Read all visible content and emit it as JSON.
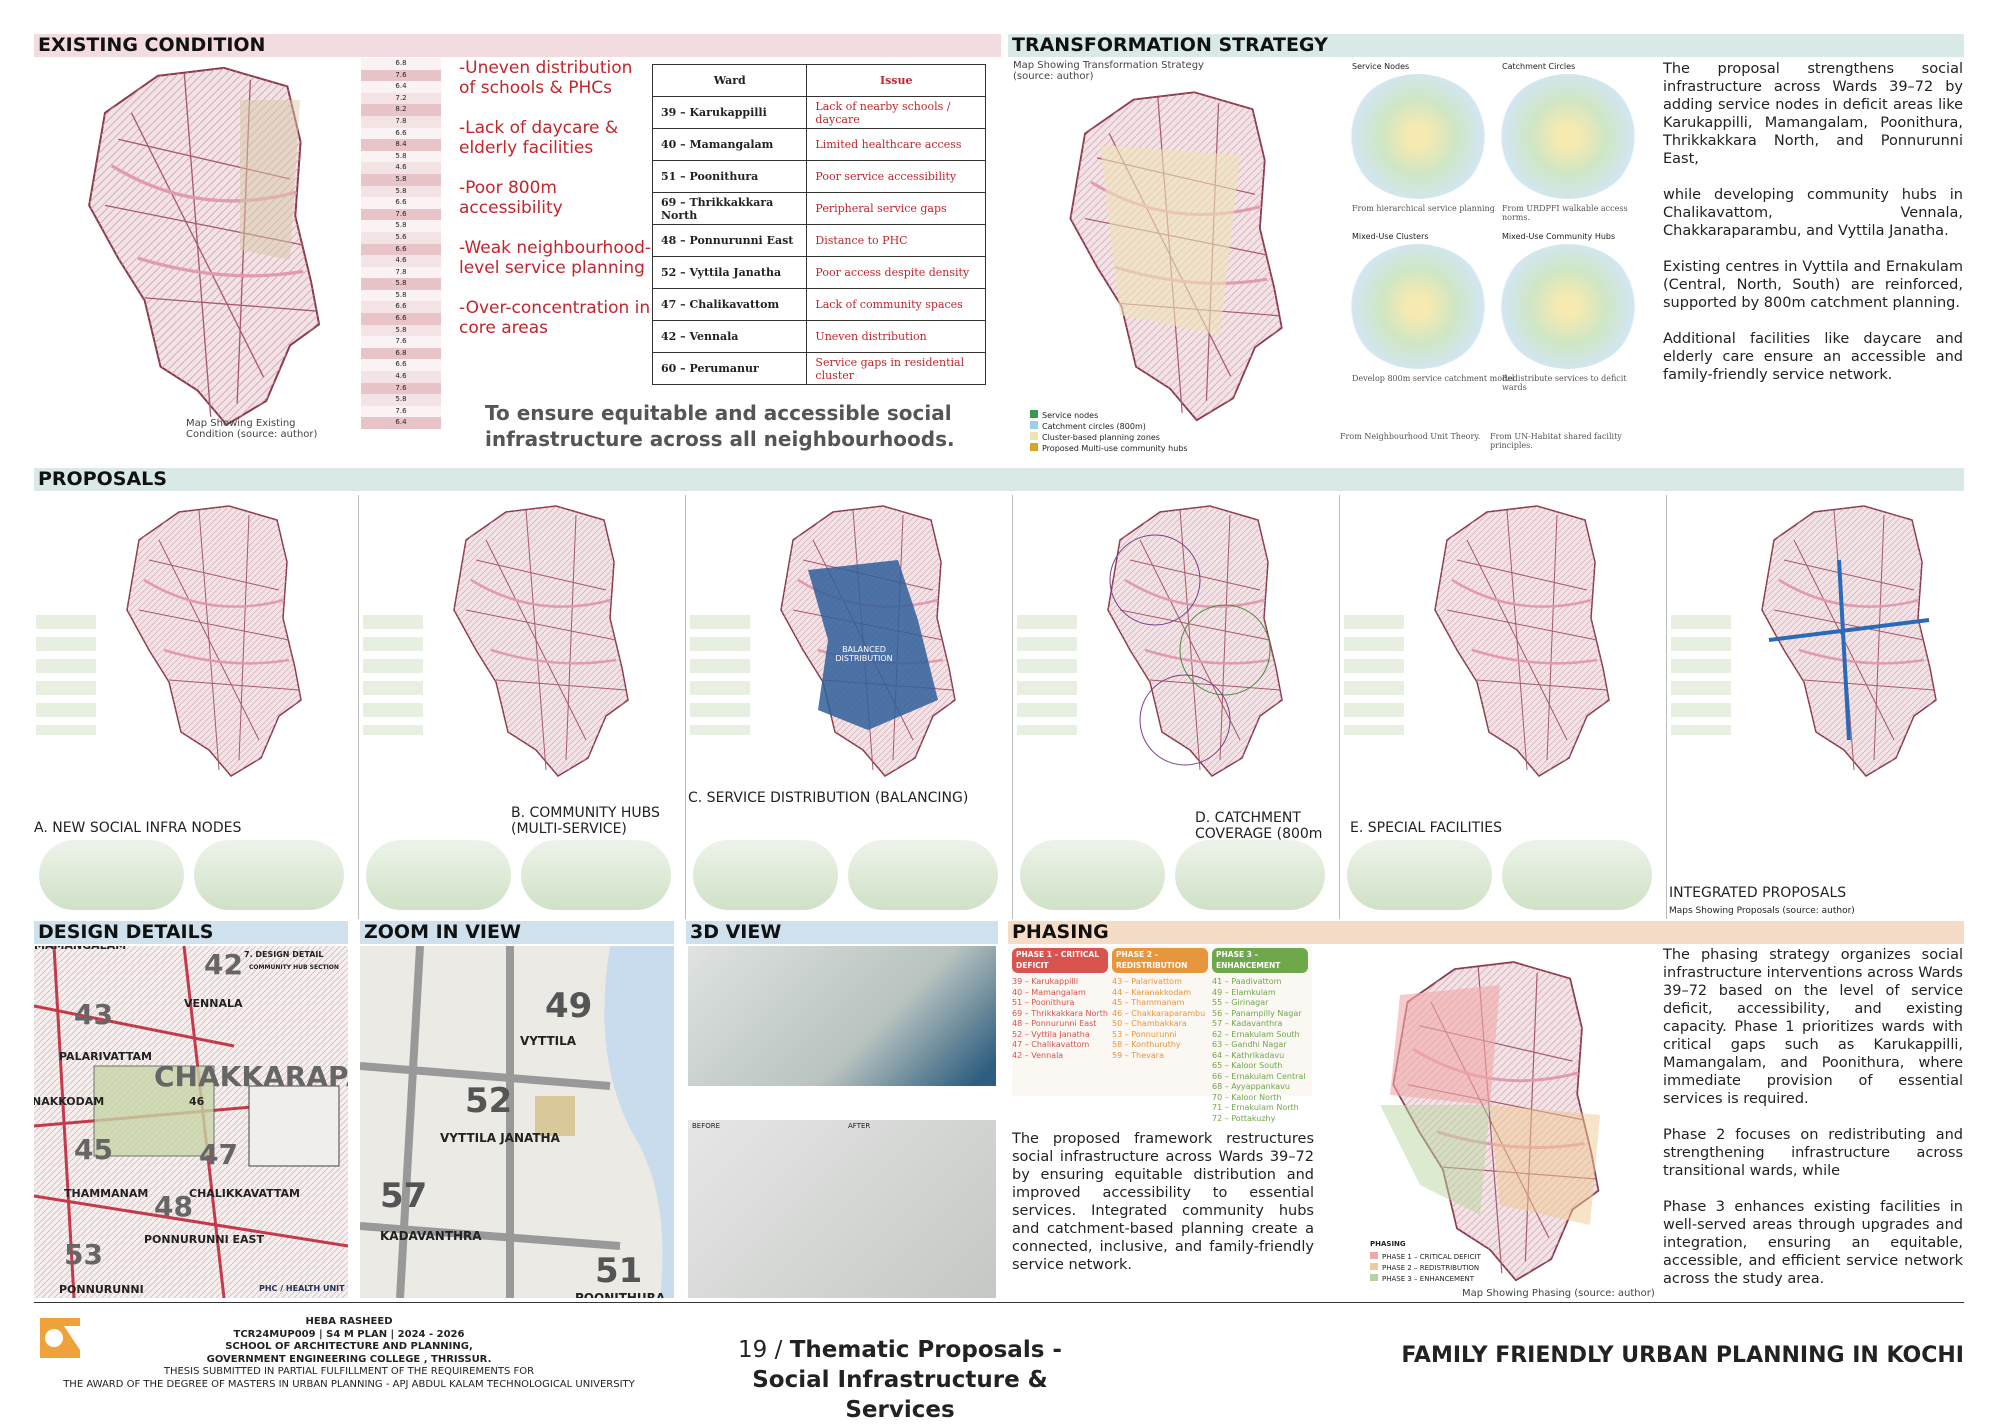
{
  "existing": {
    "title": "EXISTING CONDITION",
    "map_caption": "Map Showing Existing Condition (source: author)",
    "index_values": [
      6.8,
      7.6,
      6.4,
      7.2,
      8.2,
      7.8,
      6.6,
      8.4,
      5.8,
      4.6,
      5.8,
      5.8,
      6.6,
      7.6,
      5.8,
      5.6,
      6.6,
      4.6,
      7.8,
      5.8,
      5.8,
      6.6,
      6.6,
      5.8,
      7.6,
      6.8,
      6.6,
      4.6,
      7.6,
      5.8,
      7.6,
      6.4
    ],
    "issues": [
      "-Uneven distribution of schools & PHCs",
      "-Lack of daycare & elderly facilities",
      "-Poor 800m accessibility",
      "-Weak neighbourhood-level service planning",
      "-Over-concentration in core areas"
    ],
    "table": {
      "header": [
        "Ward",
        "Issue"
      ],
      "rows": [
        [
          "39 – Karukappilli",
          "Lack of nearby schools / daycare"
        ],
        [
          "40 – Mamangalam",
          "Limited healthcare access"
        ],
        [
          "51 – Poonithura",
          "Poor service accessibility"
        ],
        [
          "69 – Thrikkakkara North",
          "Peripheral service gaps"
        ],
        [
          "48 – Ponnurunni East",
          "Distance to PHC"
        ],
        [
          "52 – Vyttila Janatha",
          "Poor access despite density"
        ],
        [
          "47 – Chalikavattom",
          "Lack of community spaces"
        ],
        [
          "42 – Vennala",
          "Uneven distribution"
        ],
        [
          "60 – Perumanur",
          "Service gaps in residential cluster"
        ]
      ]
    },
    "statement": "To ensure equitable and accessible social infrastructure across all neighbourhoods."
  },
  "transformation": {
    "title": "TRANSFORMATION STRATEGY",
    "map_caption": "Map Showing Transformation Strategy (source: author)",
    "diagrams": [
      {
        "title": "Service Nodes",
        "note": "From hierarchical service planning"
      },
      {
        "title": "Catchment Circles",
        "note": "From URDPFI walkable access norms."
      },
      {
        "title": "Mixed-Use Clusters",
        "note": "Develop 800m service catchment model"
      },
      {
        "title": "Mixed-Use Community Hubs",
        "note": "Redistribute services to deficit wards"
      }
    ],
    "sources": [
      "From Neighbourhood Unit Theory.",
      "From UN-Habitat shared facility principles."
    ],
    "legend": [
      "Service nodes",
      "Catchment circles (800m)",
      "Cluster-based planning zones",
      "Proposed Multi-use community hubs"
    ],
    "paragraphs": [
      "The proposal strengthens social infrastructure across Wards 39–72 by adding service nodes in deficit areas like Karukappilli, Mamangalam, Poonithura, Thrikkakkara North, and Ponnurunni East,",
      "while developing community hubs in Chalikavattom, Vennala, Chakkaraparambu, and Vyttila Janatha.",
      "Existing centres in Vyttila and Ernakulam (Central, North, South) are reinforced, supported by 800m catchment planning.",
      "Additional facilities like daycare and elderly care ensure an accessible and family-friendly service network."
    ]
  },
  "proposals": {
    "title": "PROPOSALS",
    "panels": [
      "A. NEW SOCIAL INFRA NODES",
      "B. COMMUNITY HUBS (MULTI-SERVICE)",
      "C. SERVICE DISTRIBUTION (BALANCING)",
      "D. CATCHMENT COVERAGE (800m",
      "E. SPECIAL FACILITIES",
      "INTEGRATED PROPOSALS"
    ],
    "integrated_caption": "Maps Showing Proposals  (source: author)",
    "balanced_label": "BALANCED DISTRIBUTION"
  },
  "design": {
    "title": "DESIGN DETAILS",
    "detail_title": "7. DESIGN DETAIL",
    "section_title": "COMMUNITY HUB SECTION",
    "unit_label": "PHC / HEALTH UNIT",
    "places": [
      "MAMANGALAM",
      "42",
      "VENNALA",
      "43",
      "PALARIVATTAM",
      "NAKKODAM",
      "46",
      "CHAKKARAPARAMBU",
      "45",
      "THAMMANAM",
      "47",
      "CHALIKKAVATTAM",
      "48",
      "PONNURUNNI EAST",
      "53",
      "PONNURUNNI"
    ]
  },
  "zoom": {
    "title": "ZOOM IN VIEW",
    "places": [
      "49",
      "VYTTILA",
      "52",
      "VYTTILA JANATHA",
      "57",
      "KADAVANTHRA",
      "51",
      "POONITHURA"
    ]
  },
  "view3d": {
    "title": "3D VIEW",
    "labels": [
      "BEFORE",
      "AFTER"
    ]
  },
  "phasing": {
    "title": "PHASING",
    "phases": [
      {
        "name": "PHASE 1 – CRITICAL DEFICIT",
        "wards": [
          "39 – Karukappilli",
          "40 – Mamangalam",
          "51 – Poonithura",
          "69 – Thrikkakkara North",
          "48 – Ponnurunni East",
          "52 – Vyttila Janatha",
          "47 – Chalikavattom",
          "42 – Vennala"
        ]
      },
      {
        "name": "PHASE 2 – REDISTRIBUTION",
        "wards": [
          "43 – Palarivattom",
          "44 – Karanakkodam",
          "45 – Thammanam",
          "46 – Chakkaraparambu",
          "50 – Chambakkara",
          "53 – Ponnurunni",
          "58 – Konthuruthy",
          "59 – Thevara"
        ]
      },
      {
        "name": "PHASE 3 – ENHANCEMENT",
        "wards": [
          "41 – Paadivattom",
          "49 – Elamkulam",
          "55 – Girinagar",
          "56 – Panampilly Nagar",
          "57 – Kadavanthra",
          "62 – Ernakulam South",
          "63 – Gandhi Nagar",
          "64 – Kathrikadavu",
          "65 – Kaloor South",
          "66 – Ernakulam Central",
          "68 – Ayyappankavu",
          "70 – Kaloor North",
          "71 – Ernakulam North",
          "72 – Pottakuzhy"
        ]
      }
    ],
    "framework": "The proposed framework restructures social infrastructure across Wards 39–72 by ensuring equitable distribution and improved accessibility to essential services. Integrated community hubs and catchment-based planning create a connected, inclusive, and family-friendly service network.",
    "map_caption": "Map Showing Phasing  (source: author)",
    "legend_title": "PHASING",
    "paragraphs": [
      "The phasing strategy organizes social infrastructure interventions across Wards 39–72 based on the level of service deficit, accessibility, and existing capacity. Phase 1 prioritizes wards with critical gaps such as Karukappilli, Mamangalam, and Poonithura, where immediate provision of essential services is required.",
      "Phase 2 focuses on redistributing and strengthening infrastructure across transitional wards, while",
      "Phase 3 enhances existing facilities in well-served areas through upgrades and integration, ensuring an equitable, accessible, and efficient service network across the study area."
    ]
  },
  "footer": {
    "author": "HEBA RASHEED",
    "lines": [
      "TCR24MUP009 | S4 M PLAN | 2024 - 2026",
      "SCHOOL OF ARCHITECTURE AND PLANNING,",
      "GOVERNMENT ENGINEERING COLLEGE , THRISSUR.",
      "THESIS SUBMITTED IN PARTIAL FULFILLMENT OF THE REQUIREMENTS FOR",
      "THE AWARD OF THE DEGREE OF MASTERS IN URBAN PLANNING - APJ ABDUL KALAM TECHNOLOGICAL UNIVERSITY"
    ],
    "page": "19",
    "separator": "/",
    "sheet_title": "Thematic Proposals -Social Infrastructure & Services",
    "project": "FAMILY FRIENDLY URBAN PLANNING IN KOCHI"
  }
}
